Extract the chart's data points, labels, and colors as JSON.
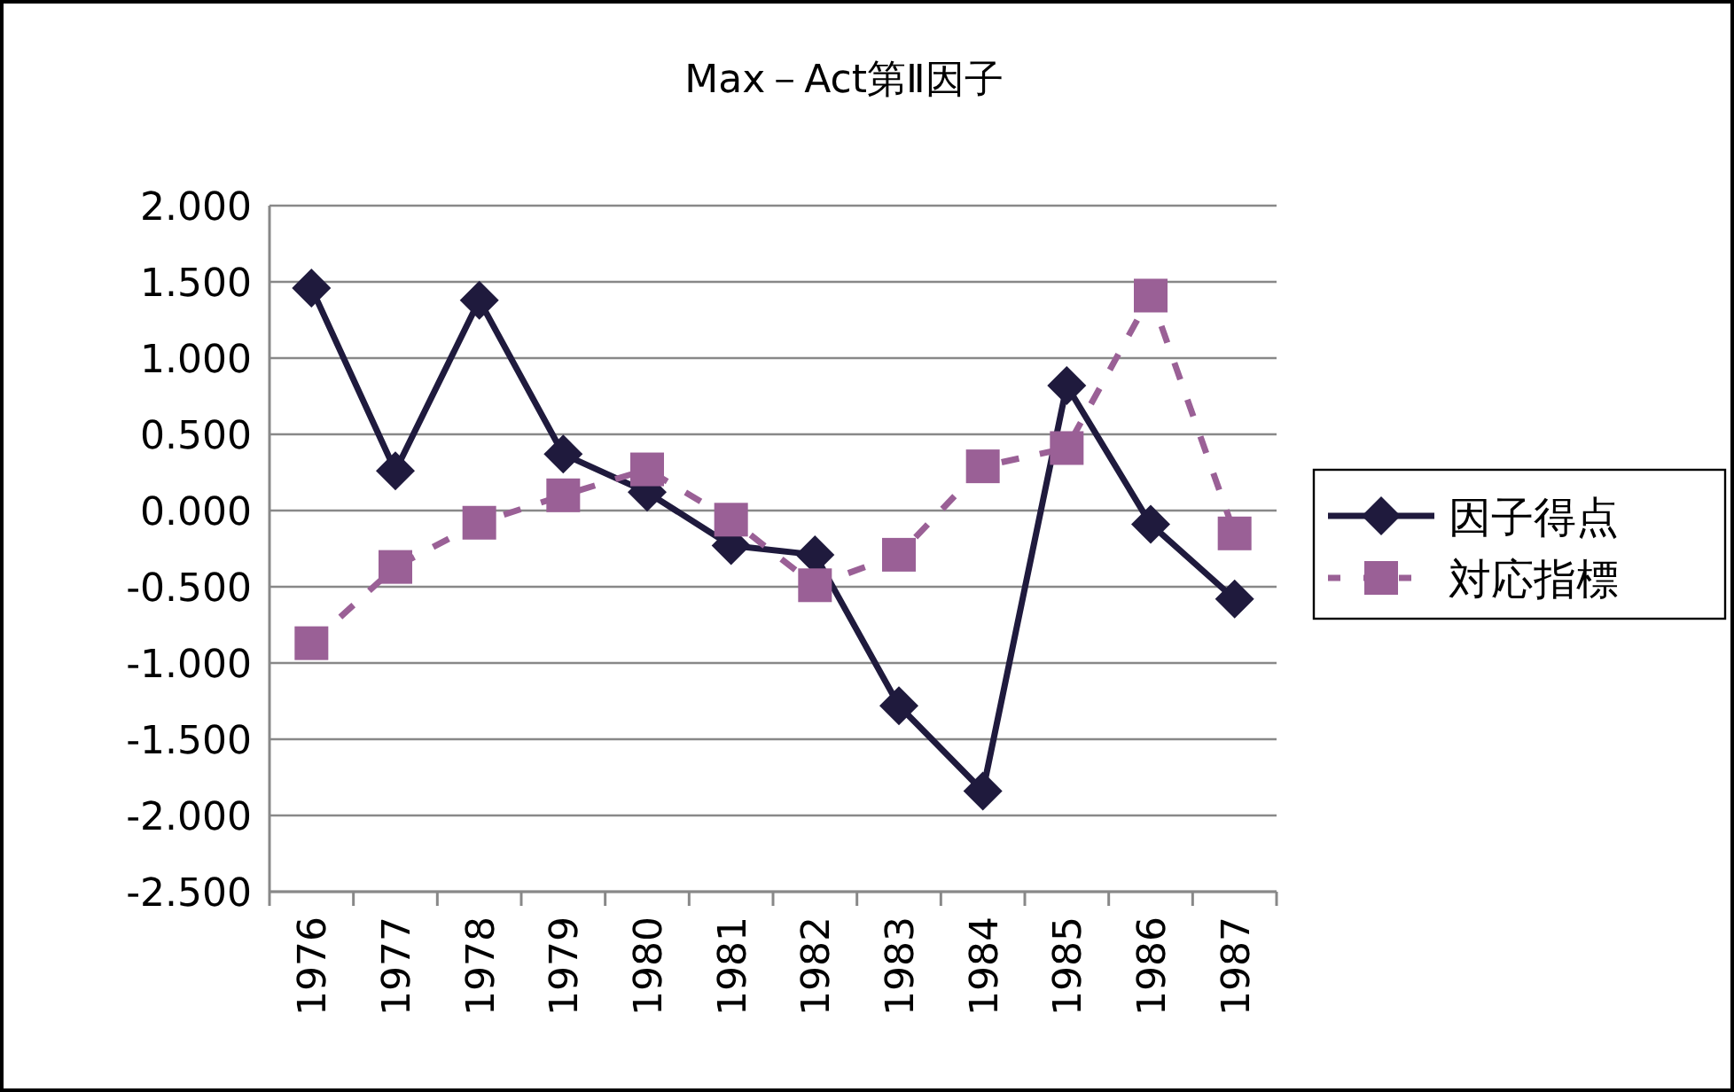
{
  "chart_data": {
    "type": "line",
    "title": "Max－Act第Ⅱ因子",
    "categories": [
      "1976",
      "1977",
      "1978",
      "1979",
      "1980",
      "1981",
      "1982",
      "1983",
      "1984",
      "1985",
      "1986",
      "1987"
    ],
    "series": [
      {
        "name": "因子得点",
        "color": "#1f1a3d",
        "marker": "diamond",
        "line_style": "solid",
        "values": [
          1.46,
          0.26,
          1.38,
          0.37,
          0.12,
          -0.23,
          -0.29,
          -1.28,
          -1.84,
          0.82,
          -0.09,
          -0.58
        ]
      },
      {
        "name": "対応指標",
        "color": "#9a6096",
        "marker": "square",
        "line_style": "dashed",
        "values": [
          -0.87,
          -0.37,
          -0.08,
          0.1,
          0.27,
          -0.06,
          -0.49,
          -0.29,
          0.29,
          0.41,
          1.41,
          -0.15
        ]
      }
    ],
    "ylim": [
      -2.5,
      2.0
    ],
    "yticks": [
      {
        "value": 2.0,
        "label": "2.000"
      },
      {
        "value": 1.5,
        "label": "1.500"
      },
      {
        "value": 1.0,
        "label": "1.000"
      },
      {
        "value": 0.5,
        "label": "0.500"
      },
      {
        "value": 0.0,
        "label": "0.000"
      },
      {
        "value": -0.5,
        "label": "-0.500"
      },
      {
        "value": -1.0,
        "label": "-1.000"
      },
      {
        "value": -1.5,
        "label": "-1.500"
      },
      {
        "value": -2.0,
        "label": "-2.000"
      },
      {
        "value": -2.5,
        "label": "-2.500"
      }
    ],
    "grid": "y",
    "legend": "right"
  }
}
